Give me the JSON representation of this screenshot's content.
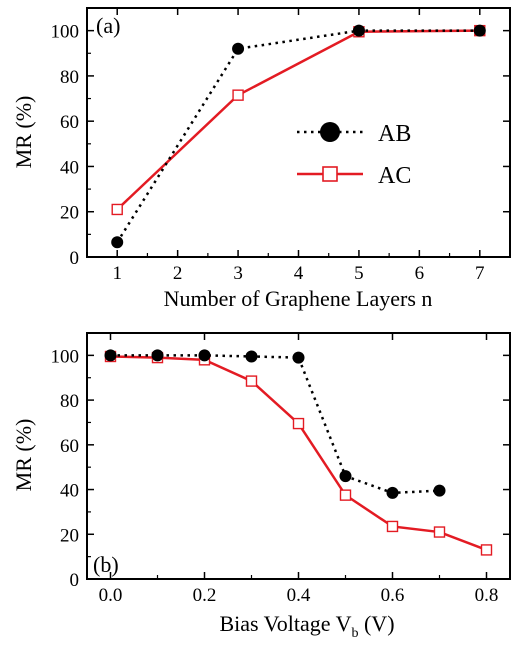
{
  "chart_data": [
    {
      "type": "line",
      "panel_label": "(a)",
      "xlabel": "Number of Graphene Layers n",
      "ylabel": "MR (%)",
      "xlim": [
        0.5,
        7.5
      ],
      "ylim": [
        0,
        110
      ],
      "xticks": [
        1,
        2,
        3,
        4,
        5,
        6,
        7
      ],
      "yticks": [
        0,
        20,
        40,
        60,
        80,
        100
      ],
      "grid": false,
      "legend": "center-right",
      "series": [
        {
          "name": "AB",
          "color": "#000000",
          "line": "dotted",
          "marker": "filled-circle",
          "x": [
            1,
            3,
            5,
            7
          ],
          "y": [
            6.5,
            92,
            100,
            100
          ]
        },
        {
          "name": "AC",
          "color": "#e31b23",
          "line": "solid",
          "marker": "open-square",
          "x": [
            1,
            3,
            5,
            7
          ],
          "y": [
            21,
            71.5,
            99.5,
            100
          ]
        }
      ]
    },
    {
      "type": "line",
      "panel_label": "(b)",
      "xlabel": "Bias Voltage V",
      "xlabel_subscript": "b",
      "xlabel_suffix": " (V)",
      "ylabel": "MR (%)",
      "xlim": [
        -0.05,
        0.85
      ],
      "ylim": [
        0,
        110
      ],
      "xticks": [
        "0.0",
        "0.2",
        "0.4",
        "0.6",
        "0.8"
      ],
      "yticks": [
        0,
        20,
        40,
        60,
        80,
        100
      ],
      "grid": false,
      "legend": "none",
      "series": [
        {
          "name": "AB",
          "color": "#000000",
          "line": "dotted",
          "marker": "filled-circle",
          "x": [
            0.0,
            0.1,
            0.2,
            0.3,
            0.4,
            0.5,
            0.6,
            0.7
          ],
          "y": [
            100,
            100,
            100,
            99.5,
            99,
            46,
            38.5,
            39.5
          ]
        },
        {
          "name": "AC",
          "color": "#e31b23",
          "line": "solid",
          "marker": "open-square",
          "x": [
            0.0,
            0.1,
            0.2,
            0.3,
            0.4,
            0.5,
            0.6,
            0.7,
            0.8
          ],
          "y": [
            99.5,
            99,
            98,
            88.5,
            69.5,
            37.5,
            23.5,
            21,
            13
          ]
        }
      ]
    }
  ]
}
